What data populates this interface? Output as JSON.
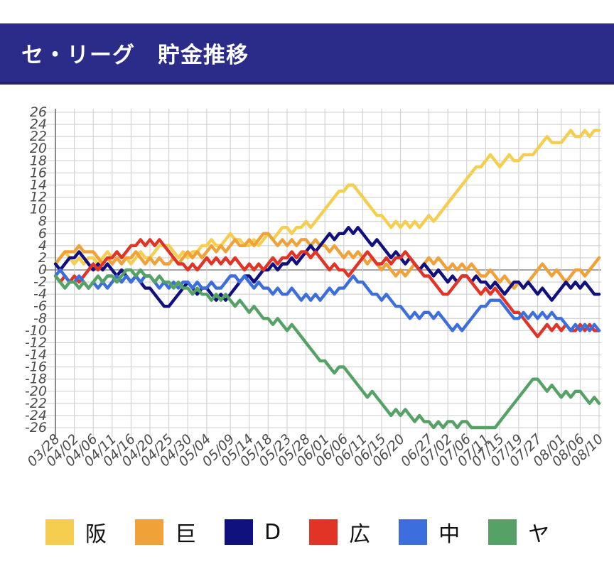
{
  "header": {
    "title": "セ・リーグ　貯金推移"
  },
  "colors": {
    "header_bg": "#2B2B8A",
    "header_border": "#20206E",
    "grid": "#d0d0d0",
    "zero_line": "#9a9a9a",
    "axis_line": "#6e6e6e",
    "tick_text": "#4c4c4c",
    "legend_text": "#111111"
  },
  "chart_data": {
    "type": "line",
    "title": "セ・リーグ　貯金推移",
    "xlabel": "",
    "ylabel": "",
    "ylim": [
      -26,
      26
    ],
    "y_tick_step": 2,
    "grid": true,
    "legend_position": "bottom",
    "x_tick_labels": [
      "03/28",
      "04/02",
      "04/06",
      "04/11",
      "04/16",
      "04/20",
      "04/25",
      "04/30",
      "05/04",
      "05/09",
      "05/14",
      "05/18",
      "05/23",
      "05/28",
      "06/01",
      "06/06",
      "06/11",
      "06/15",
      "06/20",
      "06/27",
      "07/02",
      "07/06",
      "07/11",
      "07/15",
      "07/19",
      "07/27",
      "08/01",
      "08/06",
      "08/10"
    ],
    "x_tick_indices": [
      0,
      4,
      8,
      12,
      16,
      20,
      24,
      28,
      32,
      37,
      41,
      45,
      49,
      53,
      57,
      61,
      65,
      69,
      73,
      79,
      83,
      87,
      91,
      94,
      98,
      102,
      107,
      111,
      115
    ],
    "n_points": 116,
    "series": [
      {
        "name": "阪",
        "key": "hanshin",
        "color": "#F5CE4F",
        "values": [
          1,
          2,
          3,
          2,
          1,
          2,
          1,
          2,
          2,
          1,
          2,
          3,
          2,
          3,
          2,
          2,
          1,
          2,
          3,
          2,
          2,
          3,
          4,
          4,
          4,
          3,
          2,
          3,
          2,
          3,
          3,
          4,
          4,
          5,
          4,
          4,
          5,
          6,
          5,
          5,
          4,
          4,
          5,
          4,
          5,
          6,
          5,
          6,
          7,
          7,
          6,
          7,
          7,
          8,
          7,
          8,
          9,
          10,
          11,
          12,
          13,
          13,
          14,
          14,
          13,
          12,
          11,
          10,
          9,
          9,
          8,
          7,
          8,
          7,
          8,
          7,
          8,
          7,
          8,
          9,
          8,
          9,
          10,
          11,
          12,
          13,
          14,
          15,
          16,
          17,
          17,
          18,
          19,
          18,
          17,
          18,
          19,
          18,
          18,
          19,
          19,
          19,
          20,
          21,
          22,
          21,
          21,
          21,
          22,
          23,
          22,
          22,
          23,
          22,
          23,
          23
        ]
      },
      {
        "name": "巨",
        "key": "kyojin",
        "color": "#F0A138",
        "values": [
          1,
          2,
          3,
          3,
          3,
          4,
          3,
          3,
          3,
          2,
          1,
          2,
          1,
          2,
          1,
          2,
          2,
          3,
          2,
          1,
          2,
          1,
          2,
          1,
          1,
          2,
          1,
          2,
          3,
          2,
          3,
          2,
          3,
          4,
          3,
          4,
          3,
          4,
          5,
          4,
          4,
          5,
          4,
          5,
          6,
          6,
          5,
          4,
          5,
          4,
          5,
          4,
          5,
          5,
          4,
          5,
          4,
          4,
          3,
          4,
          3,
          2,
          3,
          2,
          3,
          2,
          1,
          2,
          1,
          0,
          1,
          0,
          -1,
          0,
          -1,
          0,
          1,
          0,
          1,
          2,
          1,
          2,
          1,
          0,
          1,
          0,
          1,
          0,
          1,
          0,
          -1,
          -1,
          0,
          -1,
          -2,
          -1,
          -2,
          -3,
          -2,
          -3,
          -2,
          -1,
          0,
          1,
          0,
          -1,
          0,
          -1,
          -2,
          -1,
          0,
          0,
          -1,
          0,
          1,
          2
        ]
      },
      {
        "name": "D",
        "key": "dena",
        "color": "#10107F",
        "values": [
          1,
          0,
          1,
          2,
          2,
          3,
          2,
          1,
          0,
          1,
          0,
          1,
          0,
          -1,
          0,
          -1,
          -2,
          -1,
          -2,
          -3,
          -3,
          -4,
          -5,
          -6,
          -6,
          -5,
          -4,
          -3,
          -2,
          -3,
          -4,
          -3,
          -3,
          -4,
          -5,
          -4,
          -5,
          -4,
          -3,
          -2,
          -1,
          -1,
          -2,
          -1,
          0,
          0,
          1,
          0,
          1,
          1,
          2,
          1,
          2,
          3,
          4,
          3,
          4,
          5,
          6,
          5,
          6,
          6,
          7,
          6,
          7,
          6,
          5,
          4,
          5,
          4,
          3,
          2,
          3,
          2,
          1,
          2,
          1,
          0,
          1,
          0,
          -1,
          0,
          -1,
          -2,
          -1,
          -2,
          -1,
          -1,
          -2,
          -1,
          -2,
          -2,
          -3,
          -2,
          -3,
          -4,
          -3,
          -2,
          -2,
          -3,
          -2,
          -3,
          -4,
          -3,
          -4,
          -5,
          -4,
          -3,
          -2,
          -3,
          -2,
          -3,
          -2,
          -3,
          -4,
          -4
        ]
      },
      {
        "name": "広",
        "key": "hiroshima",
        "color": "#E23327",
        "values": [
          -1,
          -2,
          -1,
          -2,
          -1,
          -2,
          -1,
          0,
          1,
          0,
          1,
          2,
          2,
          3,
          2,
          3,
          4,
          4,
          5,
          4,
          5,
          4,
          5,
          4,
          3,
          2,
          1,
          1,
          0,
          1,
          0,
          1,
          2,
          1,
          2,
          1,
          2,
          1,
          2,
          1,
          0,
          1,
          0,
          1,
          0,
          1,
          2,
          1,
          2,
          2,
          3,
          2,
          3,
          3,
          2,
          3,
          2,
          1,
          0,
          1,
          0,
          0,
          -1,
          0,
          1,
          2,
          3,
          2,
          1,
          1,
          2,
          1,
          2,
          2,
          3,
          2,
          1,
          0,
          -1,
          -1,
          -2,
          -3,
          -4,
          -4,
          -3,
          -2,
          -1,
          -1,
          -2,
          -3,
          -4,
          -3,
          -4,
          -3,
          -4,
          -5,
          -6,
          -7,
          -7,
          -8,
          -9,
          -10,
          -11,
          -10,
          -9,
          -10,
          -9,
          -10,
          -9,
          -10,
          -10,
          -9,
          -10,
          -9,
          -10,
          -10
        ]
      },
      {
        "name": "中",
        "key": "chunichi",
        "color": "#3D6EDD",
        "values": [
          -1,
          0,
          -1,
          -2,
          -2,
          -1,
          -2,
          -3,
          -2,
          -3,
          -2,
          -3,
          -2,
          -1,
          -2,
          -1,
          -2,
          -1,
          -2,
          -1,
          -1,
          -2,
          -3,
          -2,
          -3,
          -2,
          -3,
          -2,
          -2,
          -3,
          -2,
          -3,
          -3,
          -2,
          -3,
          -3,
          -2,
          -1,
          -1,
          -2,
          -1,
          -2,
          -3,
          -2,
          -3,
          -3,
          -4,
          -3,
          -4,
          -4,
          -3,
          -4,
          -5,
          -4,
          -5,
          -4,
          -5,
          -4,
          -3,
          -4,
          -3,
          -3,
          -2,
          -1,
          -2,
          -2,
          -3,
          -4,
          -4,
          -5,
          -4,
          -5,
          -6,
          -6,
          -7,
          -8,
          -7,
          -8,
          -7,
          -7,
          -8,
          -7,
          -8,
          -9,
          -10,
          -9,
          -10,
          -9,
          -8,
          -7,
          -6,
          -6,
          -5,
          -5,
          -5,
          -6,
          -7,
          -8,
          -8,
          -7,
          -8,
          -7,
          -8,
          -7,
          -8,
          -7,
          -8,
          -8,
          -9,
          -10,
          -9,
          -10,
          -9,
          -10,
          -9,
          -10
        ]
      },
      {
        "name": "ヤ",
        "key": "yakult",
        "color": "#56A266",
        "values": [
          -1,
          -2,
          -3,
          -2,
          -2,
          -3,
          -2,
          -3,
          -2,
          -1,
          -2,
          -1,
          -1,
          -2,
          -1,
          0,
          0,
          -1,
          0,
          -1,
          -1,
          -2,
          -1,
          -2,
          -2,
          -3,
          -2,
          -3,
          -3,
          -4,
          -3,
          -4,
          -4,
          -5,
          -4,
          -5,
          -4,
          -5,
          -6,
          -5,
          -6,
          -7,
          -6,
          -7,
          -8,
          -8,
          -9,
          -8,
          -9,
          -10,
          -9,
          -10,
          -11,
          -12,
          -13,
          -14,
          -15,
          -15,
          -16,
          -17,
          -16,
          -16,
          -17,
          -18,
          -19,
          -20,
          -21,
          -20,
          -21,
          -22,
          -23,
          -24,
          -23,
          -24,
          -23,
          -24,
          -25,
          -24,
          -25,
          -25,
          -26,
          -25,
          -26,
          -25,
          -25,
          -26,
          -25,
          -25,
          -26,
          -26,
          -26,
          -26,
          -26,
          -26,
          -25,
          -24,
          -23,
          -22,
          -21,
          -20,
          -19,
          -18,
          -18,
          -19,
          -20,
          -19,
          -20,
          -21,
          -20,
          -21,
          -20,
          -20,
          -21,
          -22,
          -21,
          -22
        ]
      }
    ]
  }
}
